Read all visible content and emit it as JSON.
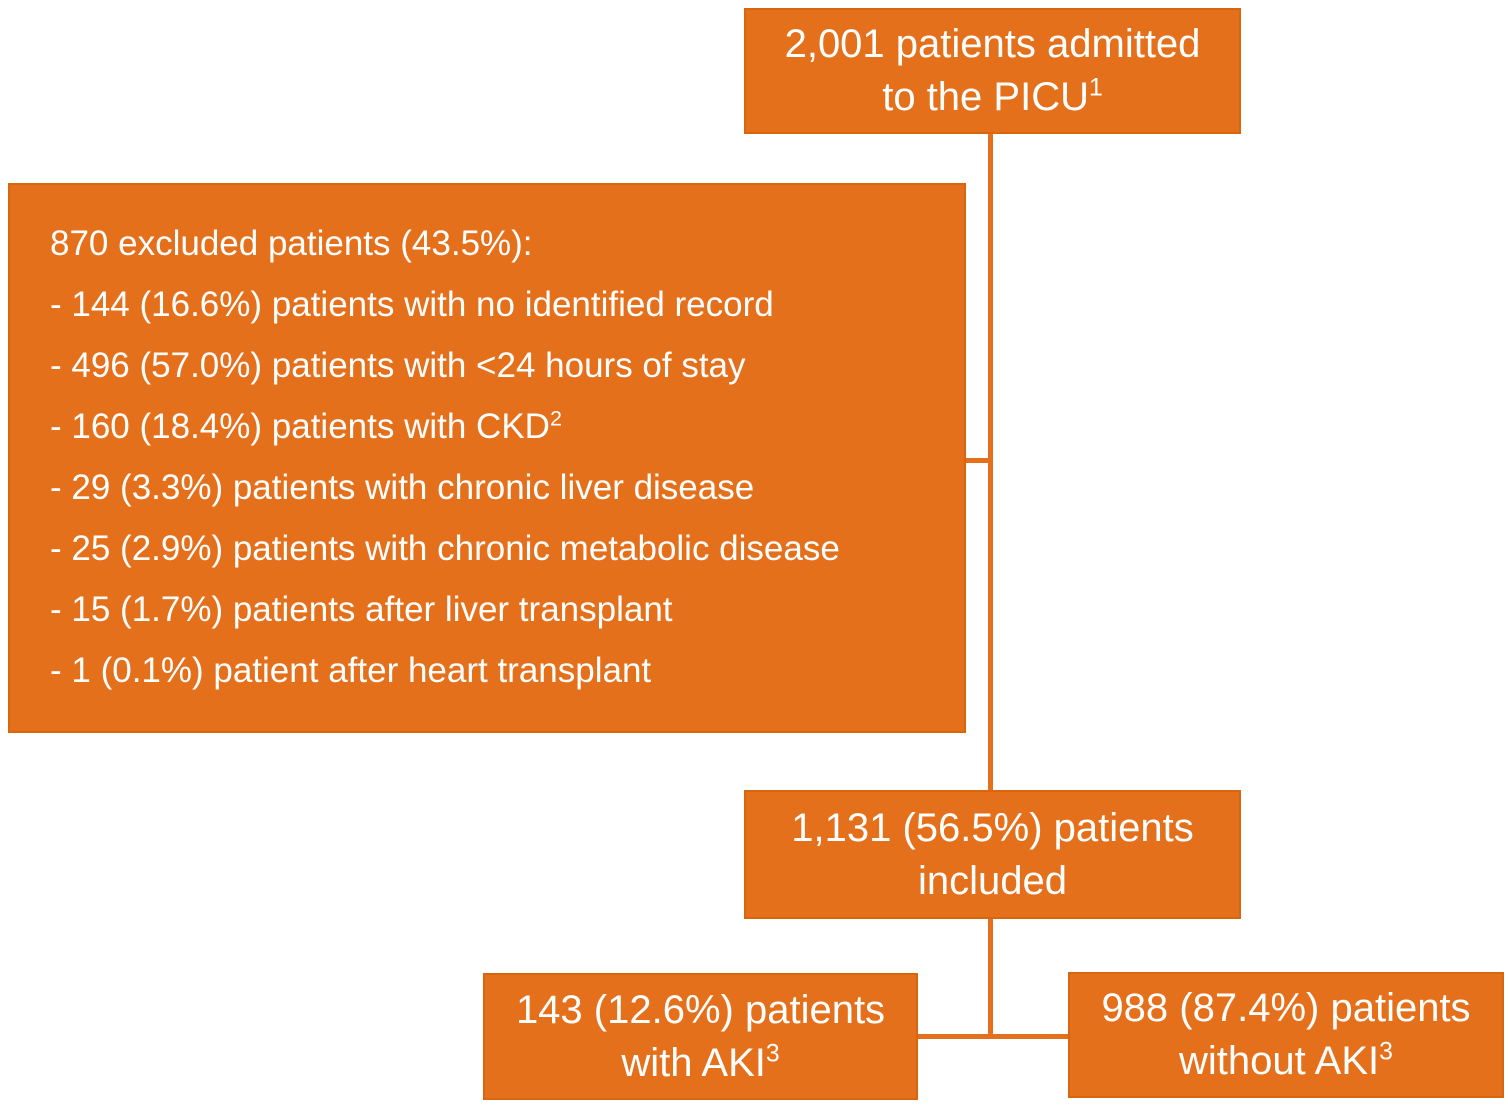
{
  "colors": {
    "box_fill": "#E5701C",
    "box_border": "#D9660D",
    "text": "#FFFFFF",
    "background": "#FFFFFF"
  },
  "boxes": {
    "admitted": {
      "line1": "2,001 patients admitted",
      "line2": "to the PICU",
      "sup": "1"
    },
    "excluded": {
      "heading": "870 excluded patients (43.5%):",
      "items": [
        {
          "text": "- 144 (16.6%) patients with no identified record",
          "sup": ""
        },
        {
          "text": "- 496 (57.0%) patients with <24 hours of stay",
          "sup": ""
        },
        {
          "text": "- 160 (18.4%) patients with CKD",
          "sup": "2"
        },
        {
          "text": "- 29 (3.3%) patients with chronic liver disease",
          "sup": ""
        },
        {
          "text": "- 25 (2.9%) patients with chronic metabolic disease",
          "sup": ""
        },
        {
          "text": "- 15 (1.7%) patients after liver transplant",
          "sup": ""
        },
        {
          "text": "- 1 (0.1%) patient after heart transplant",
          "sup": ""
        }
      ]
    },
    "included": {
      "line1": "1,131 (56.5%) patients",
      "line2": "included",
      "sup": ""
    },
    "aki": {
      "line1": "143 (12.6%) patients",
      "line2": "with AKI",
      "sup": "3"
    },
    "without_aki": {
      "line1": "988 (87.4%) patients",
      "line2": "without AKI",
      "sup": "3"
    }
  }
}
